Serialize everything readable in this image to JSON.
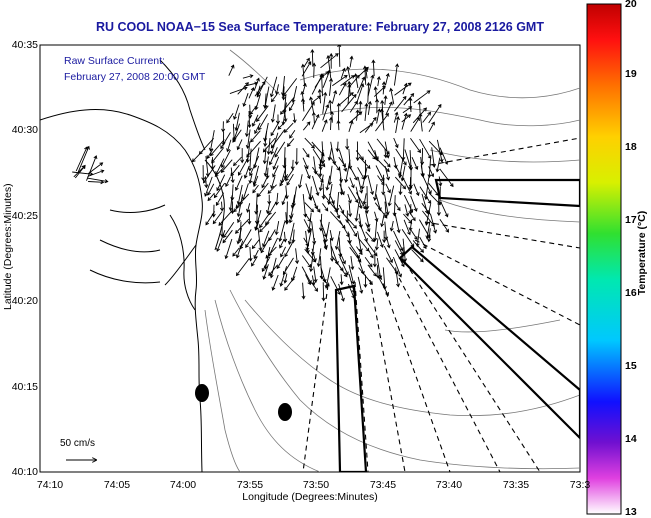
{
  "title": "RU COOL  NOAA−15  Sea Surface Temperature:  February 27, 2008 2126 GMT",
  "legend": {
    "line1": "Raw Surface Current:",
    "line2": "February 27, 2008 20:00 GMT"
  },
  "axes": {
    "ylabel": "Latitude (Degrees:Minutes)",
    "xlabel": "Longitude (Degrees:Minutes)",
    "yticks": [
      "40:35",
      "40:30",
      "40:25",
      "40:20",
      "40:15",
      "40:10"
    ],
    "xticks": [
      "74:10",
      "74:05",
      "74:00",
      "73:55",
      "73:50",
      "73:45",
      "73:40",
      "73:35",
      "73:3"
    ]
  },
  "scale_bar": {
    "label": "50 cm/s"
  },
  "colorbar": {
    "label": "Temperature (°C)",
    "ticks": [
      "20",
      "19",
      "18",
      "17",
      "16",
      "15",
      "14",
      "13"
    ],
    "range": [
      13,
      20
    ]
  },
  "colors": {
    "title": "#1a1aa0",
    "coast": "#000000",
    "bathymetry": "#777777"
  }
}
